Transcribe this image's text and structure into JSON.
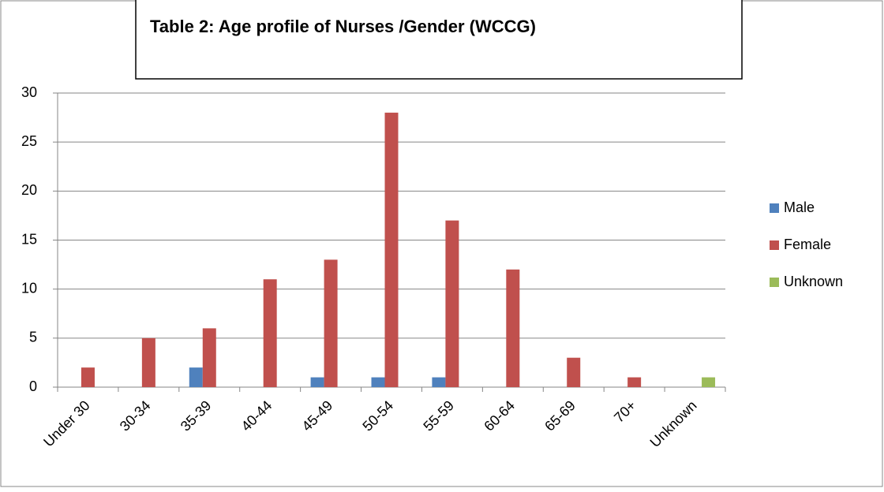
{
  "chart_data": {
    "type": "bar",
    "title": "Table 2: Age profile of Nurses /Gender (WCCG)",
    "categories": [
      "Under 30",
      "30-34",
      "35-39",
      "40-44",
      "45-49",
      "50-54",
      "55-59",
      "60-64",
      "65-69",
      "70+",
      "Unknown"
    ],
    "series": [
      {
        "name": "Male",
        "color": "#4f81bd",
        "values": [
          0,
          0,
          2,
          0,
          1,
          1,
          1,
          0,
          0,
          0,
          0
        ]
      },
      {
        "name": "Female",
        "color": "#c0504d",
        "values": [
          2,
          5,
          6,
          11,
          13,
          28,
          17,
          12,
          3,
          1,
          0
        ]
      },
      {
        "name": "Unknown",
        "color": "#9bbb59",
        "values": [
          0,
          0,
          0,
          0,
          0,
          0,
          0,
          0,
          0,
          0,
          1
        ]
      }
    ],
    "ylim": [
      0,
      30
    ],
    "yticks": [
      0,
      5,
      10,
      15,
      20,
      25,
      30
    ],
    "grid": true,
    "legend": "right"
  }
}
